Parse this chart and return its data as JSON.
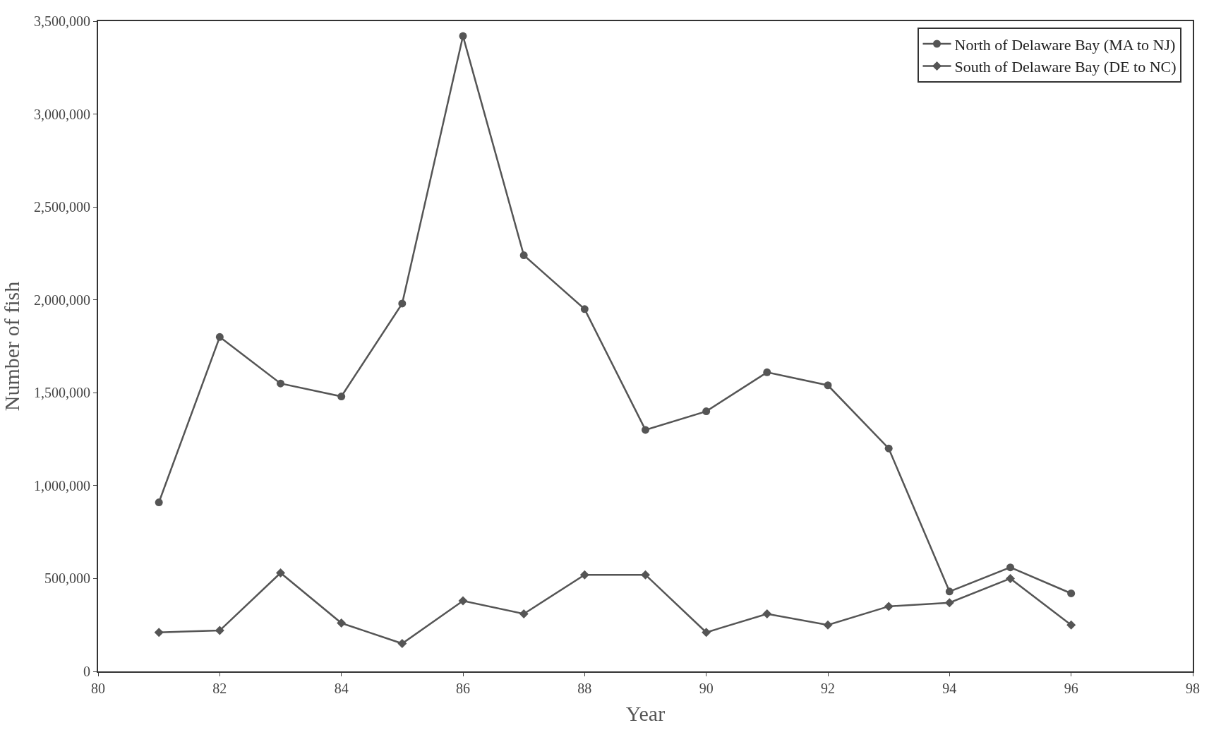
{
  "chart_data": {
    "type": "line",
    "xlabel": "Year",
    "ylabel": "Number of fish",
    "x": [
      81,
      82,
      83,
      84,
      85,
      86,
      87,
      88,
      89,
      90,
      91,
      92,
      93,
      94,
      95,
      96
    ],
    "series": [
      {
        "name": "North of Delaware Bay (MA to NJ)",
        "color": "#555555",
        "marker": "circle",
        "values": [
          910000,
          1800000,
          1550000,
          1480000,
          1980000,
          3420000,
          2240000,
          1950000,
          1300000,
          1400000,
          1610000,
          1540000,
          1200000,
          430000,
          560000,
          420000
        ]
      },
      {
        "name": "South of Delaware Bay (DE to NC)",
        "color": "#555555",
        "marker": "diamond",
        "values": [
          210000,
          220000,
          530000,
          260000,
          150000,
          380000,
          310000,
          520000,
          520000,
          210000,
          310000,
          250000,
          350000,
          370000,
          500000,
          250000
        ]
      }
    ],
    "xlim": [
      80,
      98
    ],
    "xticks": [
      80,
      82,
      84,
      86,
      88,
      90,
      92,
      94,
      96,
      98
    ],
    "ylim": [
      0,
      3500000
    ],
    "yticks": [
      0,
      {
        "value": 500000,
        "label": "500,000"
      },
      {
        "value": 1000000,
        "label": "1,000,000"
      },
      {
        "value": 1500000,
        "label": "1,500,000"
      },
      {
        "value": 2000000,
        "label": "2,000,000"
      },
      {
        "value": 2500000,
        "label": "2,500,000"
      },
      {
        "value": 3000000,
        "label": "3,000,000"
      },
      {
        "value": 3500000,
        "label": "3,500,000"
      }
    ],
    "legend": "top right",
    "line_style": "solid"
  }
}
